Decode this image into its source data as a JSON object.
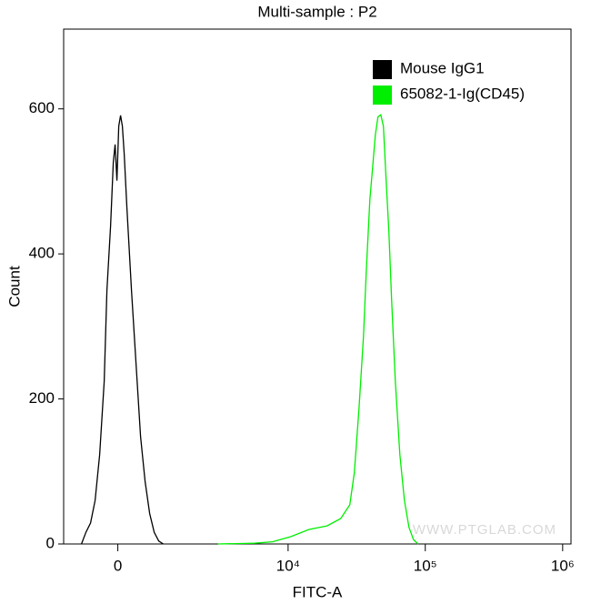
{
  "chart_data": {
    "type": "histogram-line",
    "title": "Multi-sample : P2",
    "x_label": "FITC-A",
    "y_label": "Count",
    "watermark": "WWW.PTGLAB.COM",
    "xscale": "biexponential",
    "xlim": [
      -1200,
      1150000
    ],
    "ylim": [
      0,
      710
    ],
    "xticks": [
      0,
      {
        "value": 10000,
        "label": "10⁴"
      },
      {
        "value": 100000,
        "label": "10⁵"
      },
      {
        "value": 1000000,
        "label": "10⁶"
      }
    ],
    "yticks": [
      0,
      200,
      400,
      600
    ],
    "legend": "top-right",
    "series": [
      {
        "name": "Mouse IgG1",
        "color": "#000000",
        "x": [
          -749,
          -647,
          -547,
          -451,
          -358,
          -267,
          -213,
          -141,
          -88,
          -53,
          -18,
          18,
          53,
          88,
          124,
          177,
          267,
          358,
          451,
          547,
          647,
          749,
          857,
          969
        ],
        "values": [
          0,
          16,
          29,
          60,
          123,
          224,
          350,
          438,
          526,
          551,
          501,
          576,
          591,
          576,
          538,
          463,
          350,
          249,
          148,
          86,
          42,
          16,
          4,
          0
        ]
      },
      {
        "name": "65082-1-Ig(CD45)",
        "color": "#00ee00",
        "x": [
          2986,
          5632,
          7676,
          10440,
          14180,
          19260,
          24220,
          28200,
          30450,
          32880,
          35490,
          37150,
          39480,
          41330,
          43280,
          45260,
          47400,
          49600,
          51900,
          54300,
          56900,
          60500,
          65300,
          70500,
          76100,
          82100,
          88600
        ],
        "values": [
          0,
          1,
          3,
          10,
          20,
          25,
          35,
          54,
          98,
          186,
          287,
          375,
          475,
          519,
          564,
          589,
          592,
          576,
          501,
          431,
          337,
          224,
          123,
          60,
          23,
          6,
          0
        ]
      }
    ]
  }
}
